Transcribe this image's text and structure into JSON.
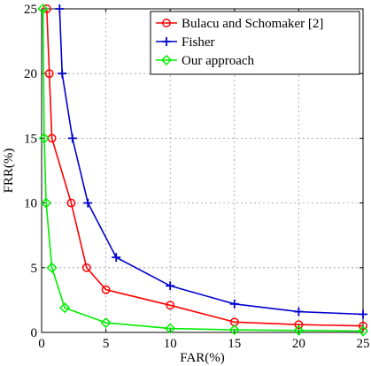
{
  "chart_data": {
    "type": "line",
    "title": "",
    "xlabel": "FAR(%)",
    "ylabel": "FRR(%)",
    "xlim": [
      0,
      25
    ],
    "ylim": [
      0,
      25
    ],
    "xticks": [
      0,
      5,
      10,
      15,
      20,
      25
    ],
    "yticks": [
      0,
      5,
      10,
      15,
      20,
      25
    ],
    "grid": true,
    "legend_position": "top-right",
    "series": [
      {
        "name": "Bulacu and Schomaker [2]",
        "color": "#ff0000",
        "marker": "circle",
        "x": [
          0.4,
          0.6,
          0.8,
          2.3,
          3.5,
          5.0,
          10.0,
          15.0,
          20.0,
          25.0
        ],
        "y": [
          25,
          20,
          15,
          10,
          5,
          3.3,
          2.1,
          0.8,
          0.6,
          0.5
        ]
      },
      {
        "name": "Fisher",
        "color": "#0000cc",
        "marker": "plus",
        "x": [
          1.4,
          1.6,
          2.4,
          3.6,
          5.8,
          10.0,
          15.0,
          20.0,
          25.0
        ],
        "y": [
          25,
          20,
          15,
          10,
          5.8,
          3.6,
          2.2,
          1.6,
          1.4
        ]
      },
      {
        "name": "Our approach",
        "color": "#00ee00",
        "marker": "diamond",
        "x": [
          0.1,
          0.2,
          0.35,
          0.8,
          1.8,
          5.0,
          10.0,
          15.0,
          20.0,
          25.0
        ],
        "y": [
          25,
          15,
          10,
          5,
          1.9,
          0.75,
          0.3,
          0.2,
          0.15,
          0.1
        ]
      }
    ]
  }
}
